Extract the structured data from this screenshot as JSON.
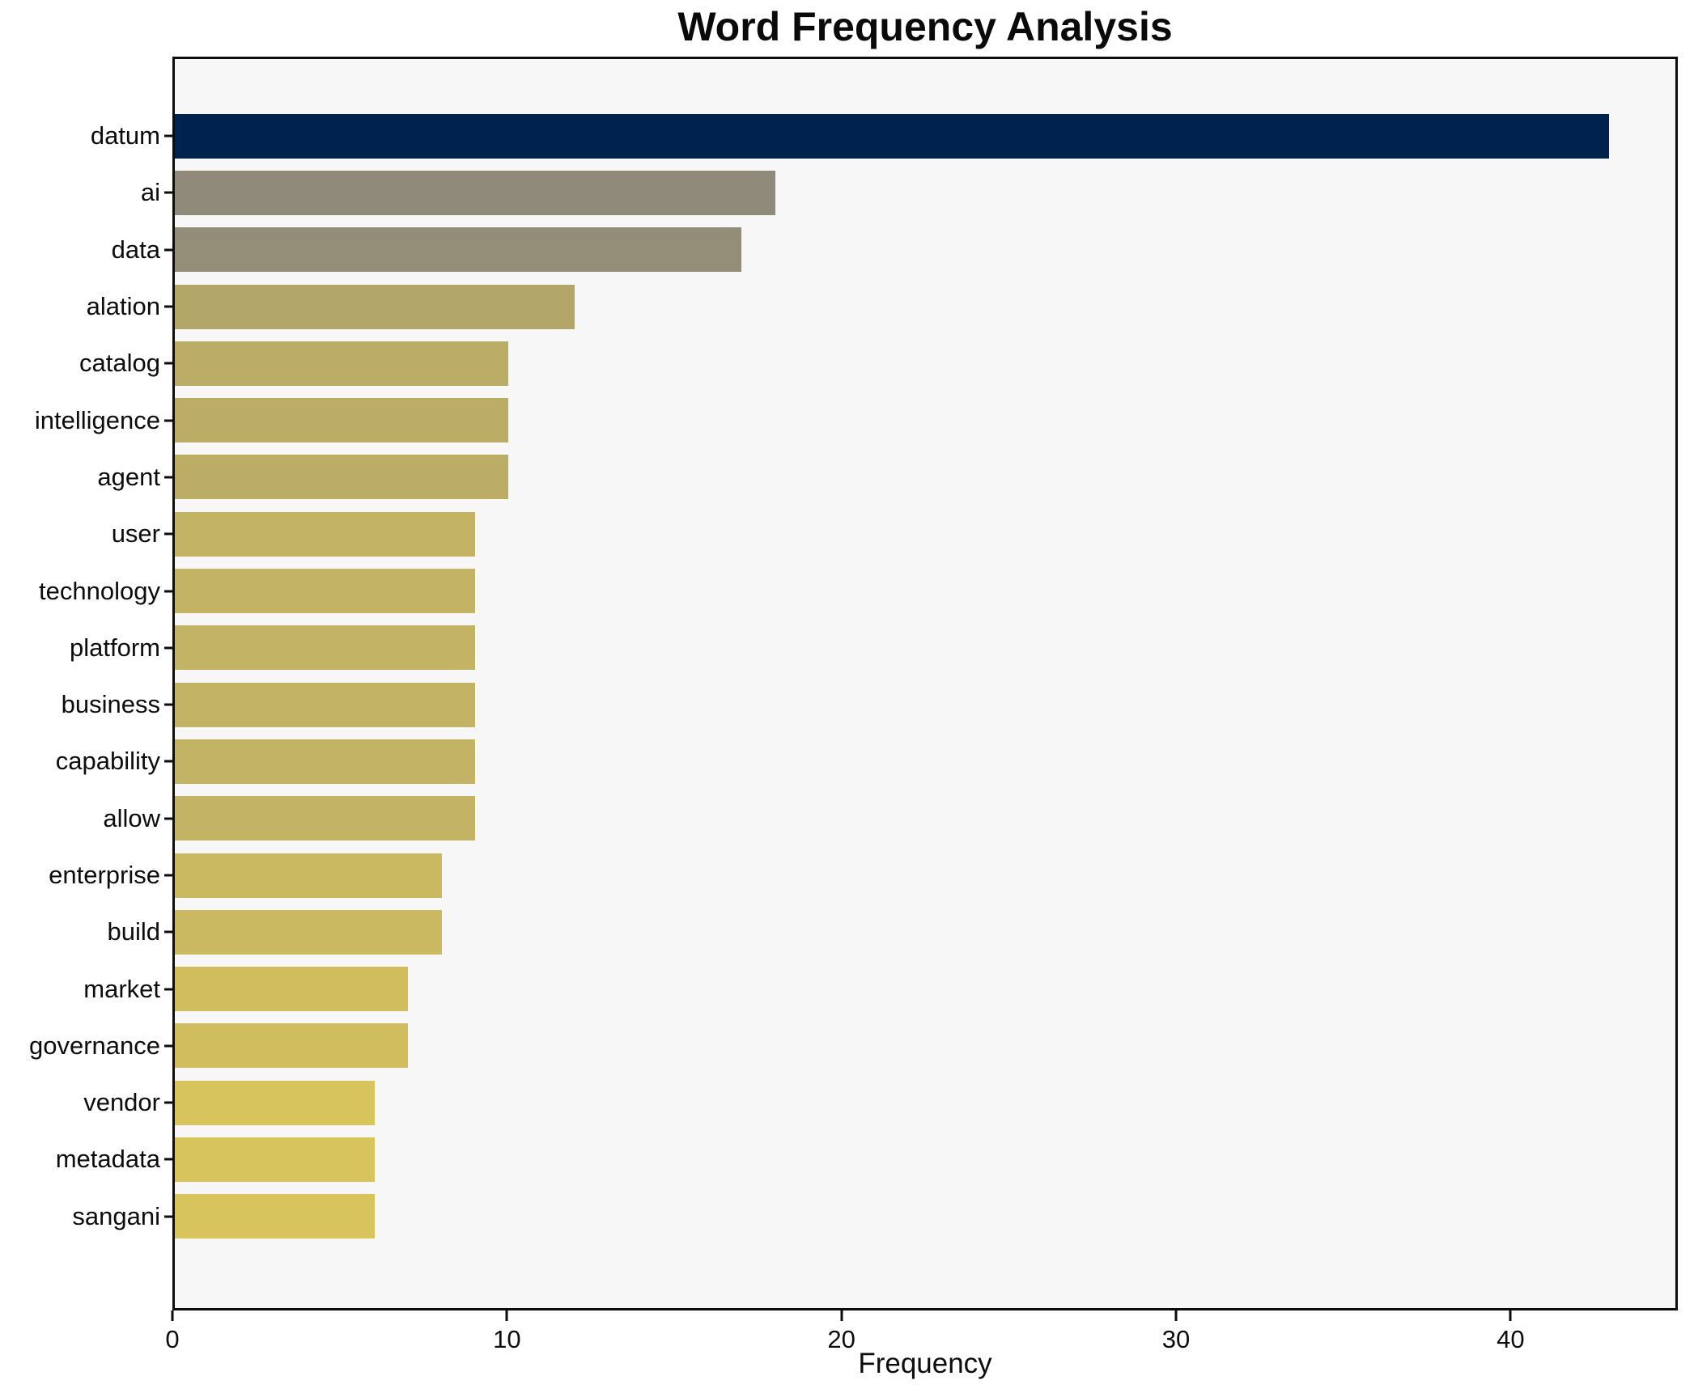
{
  "title": "Word Frequency Analysis",
  "chart_data": {
    "type": "bar",
    "orientation": "horizontal",
    "title": "Word Frequency Analysis",
    "xlabel": "Frequency",
    "ylabel": "",
    "xlim": [
      0,
      45
    ],
    "xticks": [
      0,
      10,
      20,
      30,
      40
    ],
    "xtick_labels": [
      "0",
      "10",
      "20",
      "30",
      "40"
    ],
    "grid": false,
    "legend_position": "none",
    "plot_background": "#f7f7f7",
    "figure_background": "#ffffff",
    "spine_color": "#0d0d0d",
    "categories": [
      "datum",
      "ai",
      "data",
      "alation",
      "catalog",
      "intelligence",
      "agent",
      "user",
      "technology",
      "platform",
      "business",
      "capability",
      "allow",
      "enterprise",
      "build",
      "market",
      "governance",
      "vendor",
      "metadata",
      "sangani"
    ],
    "values": [
      43,
      18,
      17,
      12,
      10,
      10,
      10,
      9,
      9,
      9,
      9,
      9,
      9,
      8,
      8,
      7,
      7,
      6,
      6,
      6
    ],
    "bar_colors": [
      "#00234d",
      "#8f8a79",
      "#948e78",
      "#b3a669",
      "#bcad66",
      "#bcad66",
      "#bcad66",
      "#c3b364",
      "#c3b364",
      "#c3b364",
      "#c3b364",
      "#c3b364",
      "#c3b364",
      "#cbb961",
      "#cbb961",
      "#d0be5e",
      "#d0be5e",
      "#d7c45c",
      "#d7c45c",
      "#d7c45c"
    ]
  }
}
